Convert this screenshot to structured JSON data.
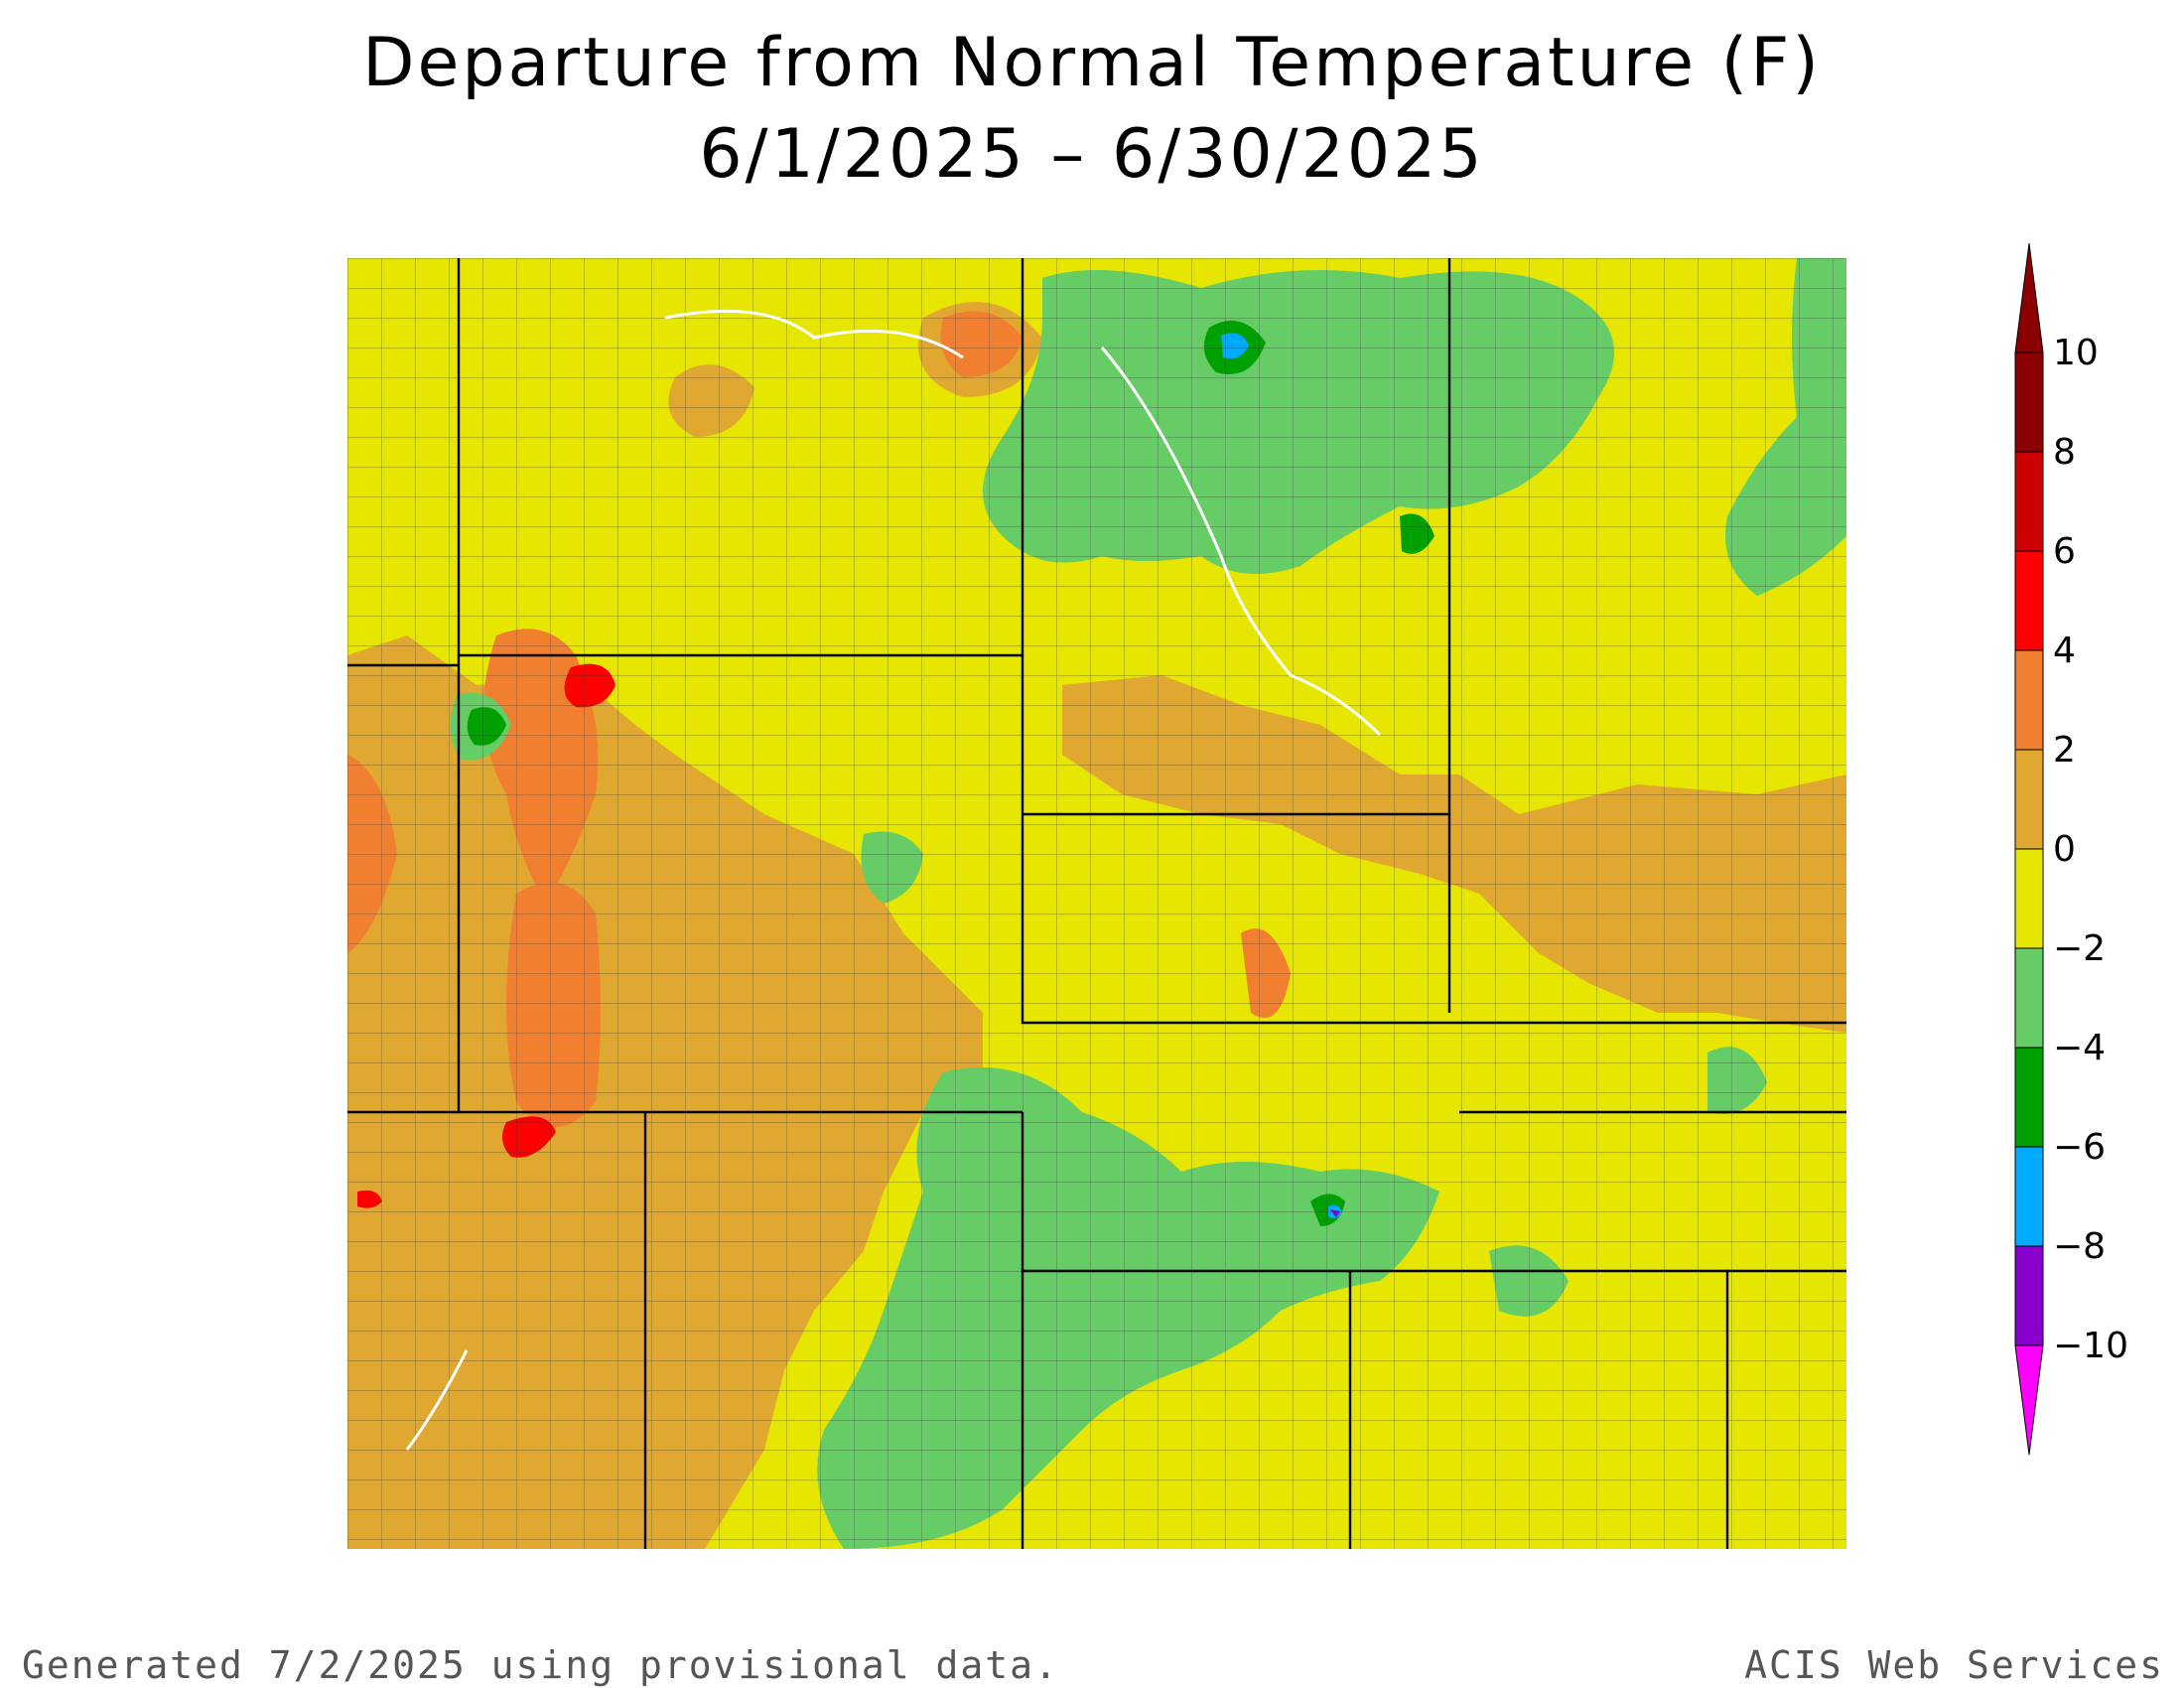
{
  "title": {
    "line1": "Departure from Normal Temperature (F)",
    "line2": "6/1/2025 – 6/30/2025"
  },
  "legend": {
    "levels": [
      {
        "label": "10",
        "color": "#8b0000"
      },
      {
        "label": "8",
        "color": "#cc0000"
      },
      {
        "label": "6",
        "color": "#ff0000"
      },
      {
        "label": "4",
        "color": "#f08030"
      },
      {
        "label": "2",
        "color": "#e0a830"
      },
      {
        "label": "0",
        "color": "#e6e600"
      },
      {
        "label": "−2",
        "color": "#66cc66"
      },
      {
        "label": "−4",
        "color": "#00a000"
      },
      {
        "label": "−6",
        "color": "#00aaff"
      },
      {
        "label": "−8",
        "color": "#8800cc"
      },
      {
        "label": "−10",
        "color": "#aa00aa"
      }
    ],
    "bottom_color": "#ff00ff"
  },
  "footer": {
    "left": "Generated 7/2/2025 using provisional data.",
    "right": "ACIS Web Services"
  },
  "map": {
    "base_color": "#e6e600",
    "anomaly_colors": {
      "plus2to4": "#e0a830",
      "plus4to6": "#f08030",
      "plus6to8": "#ff0000",
      "minus0to2": "#66cc66",
      "minus2to4": "#00a000",
      "minus4to6": "#00aaff",
      "minus6to8": "#8800cc"
    }
  }
}
